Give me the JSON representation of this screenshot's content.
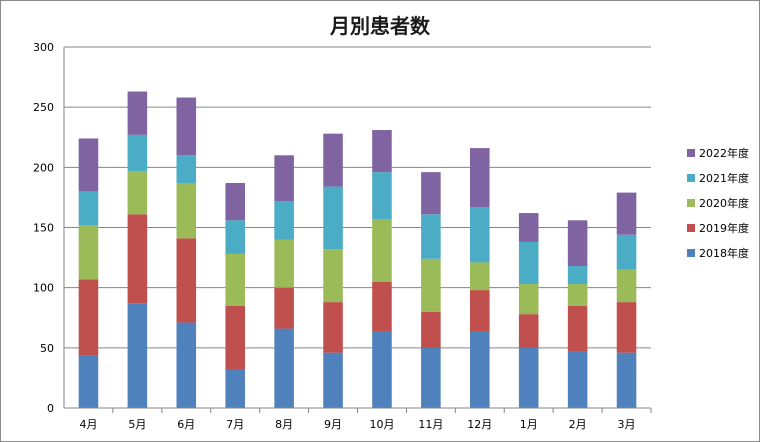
{
  "chart_data": {
    "type": "bar",
    "stacked": true,
    "title": "月別患者数",
    "xlabel": "",
    "ylabel": "",
    "ylim": [
      0,
      300
    ],
    "yticks": [
      0,
      50,
      100,
      150,
      200,
      250,
      300
    ],
    "grid": true,
    "legend_position": "right",
    "categories": [
      "4月",
      "5月",
      "6月",
      "7月",
      "8月",
      "9月",
      "10月",
      "11月",
      "12月",
      "1月",
      "2月",
      "3月"
    ],
    "series": [
      {
        "name": "2018年度",
        "color": "#4f81bd",
        "values": [
          44,
          87,
          71,
          32,
          66,
          46,
          64,
          50,
          64,
          50,
          47,
          46
        ]
      },
      {
        "name": "2019年度",
        "color": "#c0504d",
        "values": [
          63,
          74,
          70,
          53,
          34,
          42,
          41,
          30,
          34,
          28,
          38,
          42
        ]
      },
      {
        "name": "2020年度",
        "color": "#9bbb59",
        "values": [
          45,
          36,
          46,
          43,
          40,
          44,
          52,
          44,
          23,
          25,
          18,
          27
        ]
      },
      {
        "name": "2021年度",
        "color": "#4bacc6",
        "values": [
          28,
          30,
          23,
          28,
          32,
          52,
          39,
          37,
          46,
          35,
          15,
          29
        ]
      },
      {
        "name": "2022年度",
        "color": "#8064a2",
        "values": [
          44,
          36,
          48,
          31,
          38,
          44,
          35,
          35,
          49,
          24,
          38,
          35
        ]
      }
    ]
  }
}
